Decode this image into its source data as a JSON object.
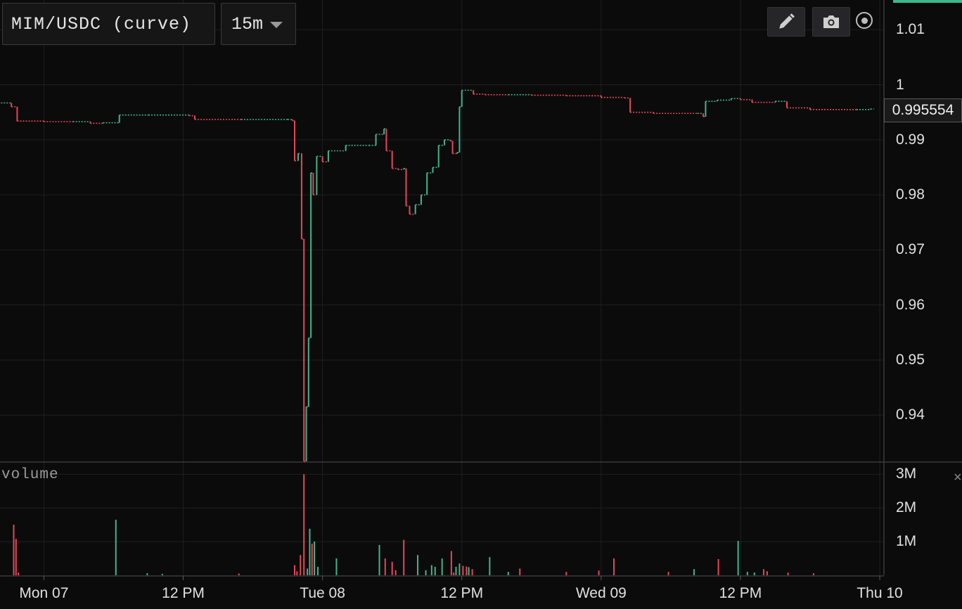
{
  "toolbar": {
    "pair_label": "MIM/USDC (curve)",
    "timeframe_label": "15m",
    "draw_icon": "pencil-icon",
    "snapshot_icon": "camera-icon",
    "target_icon": "target-icon"
  },
  "volume_pane": {
    "label": "volume",
    "close_glyph": "×"
  },
  "colors": {
    "up": "#3fb68b",
    "down": "#e8455a",
    "background": "#0b0b0c",
    "grid": "#1f1f21"
  },
  "chart_data": {
    "type": "candlestick",
    "pair": "MIM/USDC (curve)",
    "interval": "15m",
    "last_price": "0.995554",
    "y_ticks": [
      "1.01",
      "1",
      "0.99",
      "0.98",
      "0.97",
      "0.96",
      "0.95",
      "0.94"
    ],
    "y_tick_values": [
      1.01,
      1.0,
      0.99,
      0.98,
      0.97,
      0.96,
      0.95,
      0.94
    ],
    "ylim": [
      0.9316,
      1.0154
    ],
    "x_ticks": [
      "Mon 07",
      "12 PM",
      "Tue 08",
      "12 PM",
      "Wed 09",
      "12 PM",
      "Thu 10"
    ],
    "x_tick_hours": [
      0,
      12,
      24,
      36,
      48,
      60,
      72
    ],
    "xlim_hours": [
      -3.78,
      72.3
    ],
    "volume_ticks": [
      "3M",
      "2M",
      "1M"
    ],
    "volume_tick_values": [
      3000000,
      2000000,
      1000000
    ],
    "volume_max": 3300000,
    "price_series": [
      [
        -3.7,
        0.9967
      ],
      [
        -2.8,
        0.996
      ],
      [
        -2.3,
        0.9934
      ],
      [
        0.0,
        0.9933
      ],
      [
        2.5,
        0.9933
      ],
      [
        4.0,
        0.993
      ],
      [
        5.1,
        0.9931
      ],
      [
        6.5,
        0.9945
      ],
      [
        9.0,
        0.9945
      ],
      [
        12.5,
        0.9944
      ],
      [
        13.0,
        0.9937
      ],
      [
        17.0,
        0.9937
      ],
      [
        21.0,
        0.9937
      ],
      [
        21.4,
        0.9935
      ],
      [
        21.6,
        0.9862
      ],
      [
        21.9,
        0.9875
      ],
      [
        22.2,
        0.972
      ],
      [
        22.4,
        0.9316
      ],
      [
        22.6,
        0.9415
      ],
      [
        22.8,
        0.954
      ],
      [
        23.0,
        0.984
      ],
      [
        23.2,
        0.98
      ],
      [
        23.5,
        0.987
      ],
      [
        24.0,
        0.986
      ],
      [
        24.5,
        0.988
      ],
      [
        26.0,
        0.989
      ],
      [
        28.0,
        0.989
      ],
      [
        28.6,
        0.991
      ],
      [
        29.3,
        0.992
      ],
      [
        29.5,
        0.988
      ],
      [
        30.0,
        0.9848
      ],
      [
        30.5,
        0.9846
      ],
      [
        31.0,
        0.9848
      ],
      [
        31.2,
        0.978
      ],
      [
        31.5,
        0.9765
      ],
      [
        32.0,
        0.9782
      ],
      [
        32.5,
        0.98
      ],
      [
        33.0,
        0.984
      ],
      [
        33.5,
        0.985
      ],
      [
        34.0,
        0.989
      ],
      [
        34.5,
        0.99
      ],
      [
        35.0,
        0.9898
      ],
      [
        35.2,
        0.9875
      ],
      [
        35.6,
        0.9877
      ],
      [
        35.8,
        0.996
      ],
      [
        36.0,
        0.999
      ],
      [
        37.0,
        0.9983
      ],
      [
        38.0,
        0.9982
      ],
      [
        40.0,
        0.9982
      ],
      [
        42.0,
        0.9981
      ],
      [
        45.0,
        0.998
      ],
      [
        48.0,
        0.9977
      ],
      [
        50.0,
        0.9976
      ],
      [
        50.5,
        0.995
      ],
      [
        52.5,
        0.9948
      ],
      [
        56.3,
        0.9948
      ],
      [
        56.8,
        0.9942
      ],
      [
        57.0,
        0.997
      ],
      [
        58.0,
        0.9972
      ],
      [
        59.2,
        0.9975
      ],
      [
        60.0,
        0.9973
      ],
      [
        61.0,
        0.9968
      ],
      [
        63.0,
        0.997
      ],
      [
        64.0,
        0.9958
      ],
      [
        66.0,
        0.9955
      ],
      [
        70.0,
        0.9955
      ],
      [
        71.2,
        0.9956
      ]
    ],
    "volume_bars": [
      [
        -2.6,
        1500000,
        "down"
      ],
      [
        -2.4,
        1080000,
        "down"
      ],
      [
        -2.2,
        80000,
        "down"
      ],
      [
        6.2,
        1650000,
        "up"
      ],
      [
        8.9,
        60000,
        "up"
      ],
      [
        10.2,
        40000,
        "up"
      ],
      [
        16.8,
        50000,
        "down"
      ],
      [
        21.6,
        300000,
        "down"
      ],
      [
        21.8,
        120000,
        "down"
      ],
      [
        22.1,
        600000,
        "down"
      ],
      [
        22.4,
        3000000,
        "down"
      ],
      [
        22.7,
        200000,
        "up"
      ],
      [
        22.9,
        1380000,
        "up"
      ],
      [
        23.1,
        940000,
        "down"
      ],
      [
        23.3,
        1000000,
        "up"
      ],
      [
        23.6,
        250000,
        "up"
      ],
      [
        25.2,
        500000,
        "up"
      ],
      [
        28.9,
        900000,
        "up"
      ],
      [
        29.4,
        500000,
        "down"
      ],
      [
        30.0,
        400000,
        "down"
      ],
      [
        30.3,
        150000,
        "down"
      ],
      [
        31.0,
        1050000,
        "down"
      ],
      [
        32.2,
        600000,
        "up"
      ],
      [
        32.9,
        150000,
        "up"
      ],
      [
        33.4,
        300000,
        "up"
      ],
      [
        33.7,
        250000,
        "up"
      ],
      [
        34.3,
        500000,
        "up"
      ],
      [
        35.1,
        720000,
        "down"
      ],
      [
        35.3,
        80000,
        "down"
      ],
      [
        35.5,
        250000,
        "up"
      ],
      [
        35.8,
        350000,
        "up"
      ],
      [
        36.1,
        280000,
        "down"
      ],
      [
        36.4,
        260000,
        "down"
      ],
      [
        36.6,
        240000,
        "up"
      ],
      [
        36.9,
        180000,
        "down"
      ],
      [
        38.4,
        540000,
        "up"
      ],
      [
        40.0,
        100000,
        "up"
      ],
      [
        41.0,
        200000,
        "down"
      ],
      [
        45.0,
        100000,
        "down"
      ],
      [
        47.8,
        140000,
        "down"
      ],
      [
        49.1,
        500000,
        "down"
      ],
      [
        53.8,
        100000,
        "down"
      ],
      [
        56.0,
        180000,
        "up"
      ],
      [
        58.1,
        480000,
        "down"
      ],
      [
        59.8,
        1020000,
        "up"
      ],
      [
        60.6,
        100000,
        "up"
      ],
      [
        61.2,
        80000,
        "up"
      ],
      [
        62.0,
        180000,
        "down"
      ],
      [
        62.3,
        120000,
        "down"
      ],
      [
        64.1,
        80000,
        "down"
      ],
      [
        66.3,
        60000,
        "down"
      ]
    ]
  }
}
